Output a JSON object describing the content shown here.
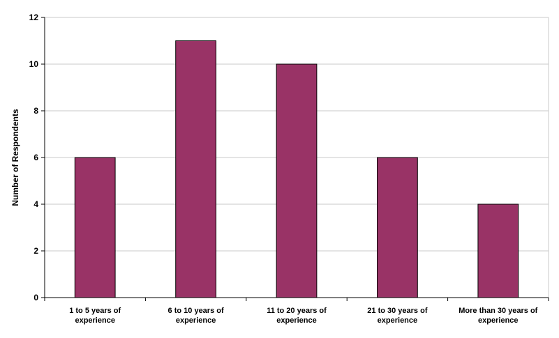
{
  "chart_data": {
    "type": "bar",
    "title": "",
    "xlabel": "",
    "ylabel": "Number of Respondents",
    "categories": [
      [
        "1 to 5 years of",
        "experience"
      ],
      [
        "6 to 10 years of",
        "experience"
      ],
      [
        "11 to 20 years of",
        "experience"
      ],
      [
        "21 to 30 years of",
        "experience"
      ],
      [
        "More than 30 years of",
        "experience"
      ]
    ],
    "values": [
      6,
      11,
      10,
      6,
      4
    ],
    "ylim": [
      0,
      12
    ],
    "yticks": [
      0,
      2,
      4,
      6,
      8,
      10,
      12
    ],
    "grid": true,
    "legend": "none",
    "bar_color": "#993366",
    "bar_edge_color": "#000000",
    "grid_color": "#c8c8c8"
  }
}
